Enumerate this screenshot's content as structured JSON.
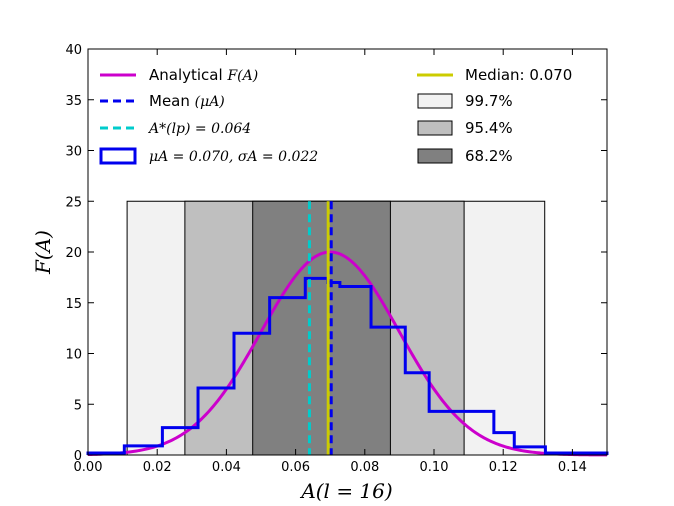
{
  "chart_data": {
    "type": "histogram",
    "xlabel": "A(l = 16)",
    "ylabel": "F(A)",
    "xlim": [
      0.0,
      0.15
    ],
    "ylim": [
      0,
      40
    ],
    "xticks": [
      0.0,
      0.02,
      0.04,
      0.06,
      0.08,
      0.1,
      0.12,
      0.14
    ],
    "xtick_labels": [
      "0.00",
      "0.02",
      "0.04",
      "0.06",
      "0.08",
      "0.10",
      "0.12",
      "0.14"
    ],
    "yticks": [
      0,
      5,
      10,
      15,
      20,
      25,
      30,
      35,
      40
    ],
    "ytick_labels": [
      "0",
      "5",
      "10",
      "15",
      "20",
      "25",
      "30",
      "35",
      "40"
    ],
    "histogram": {
      "label": "μA = 0.070, σA = 0.022",
      "color": "#0000ee",
      "bin_edges": [
        0.0,
        0.0105,
        0.0215,
        0.0318,
        0.0422,
        0.0525,
        0.0628,
        0.0693,
        0.0728,
        0.0818,
        0.0917,
        0.0986,
        0.1088,
        0.1173,
        0.1232,
        0.1322,
        0.15
      ],
      "heights": [
        0.2,
        0.9,
        2.7,
        6.6,
        12.0,
        15.5,
        17.4,
        17.0,
        16.6,
        12.6,
        8.1,
        4.3,
        4.3,
        2.2,
        0.8,
        0.2
      ]
    },
    "analytical": {
      "label": "Analytical F(A)",
      "color": "#cc00cc",
      "mean": 0.07,
      "sigma": 0.02,
      "peak": 20.0
    },
    "mean_line": {
      "label": "Mean (μA)",
      "x": 0.07,
      "color": "#0000ee"
    },
    "a_star_line": {
      "label": "A*(lp) = 0.064",
      "x": 0.064,
      "color": "#00cccc"
    },
    "median_line": {
      "label": "Median: 0.070",
      "x": 0.07,
      "color": "#cccc00"
    },
    "confidence_bands": [
      {
        "label": "99.7%",
        "x0": 0.0113,
        "x1": 0.132,
        "height": 25,
        "color": "#f2f2f2"
      },
      {
        "label": "95.4%",
        "x0": 0.028,
        "x1": 0.1087,
        "height": 25,
        "color": "#bfbfbf"
      },
      {
        "label": "68.2%",
        "x0": 0.0476,
        "x1": 0.0874,
        "height": 25,
        "color": "#808080"
      }
    ]
  },
  "legend": {
    "left": [
      {
        "key": "analytical",
        "prefix": "Analytical ",
        "math": "F(A)"
      },
      {
        "key": "mean",
        "prefix": "Mean ",
        "math": "(μA)"
      },
      {
        "key": "astar",
        "prefix": "",
        "math": "A*(lp) = 0.064"
      },
      {
        "key": "hist",
        "prefix": "",
        "math": "μA = 0.070, σA = 0.022"
      }
    ],
    "right": [
      {
        "key": "median",
        "text": "Median: 0.070"
      },
      {
        "key": "band997",
        "text": "99.7%"
      },
      {
        "key": "band954",
        "text": "95.4%"
      },
      {
        "key": "band682",
        "text": "68.2%"
      }
    ]
  }
}
